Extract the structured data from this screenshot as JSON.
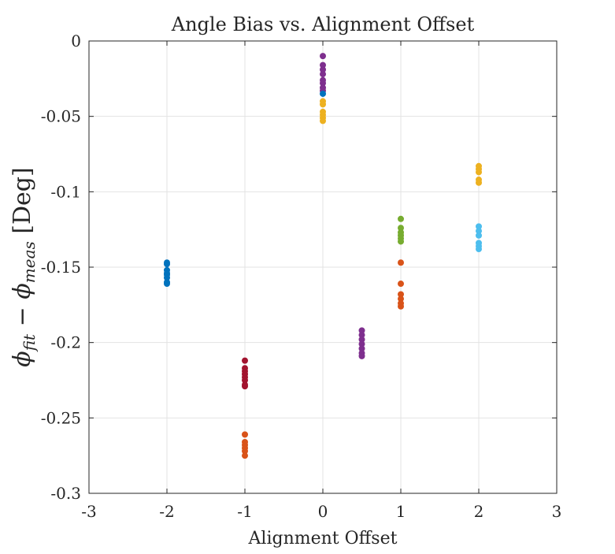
{
  "chart_data": {
    "type": "scatter",
    "title": "Angle Bias vs. Alignment Offset",
    "xlabel": "Alignment Offset",
    "ylabel": {
      "prefix": "ϕ",
      "sub1": "fit",
      "minus": " − ϕ",
      "sub2": "meas",
      "units": " [Deg]"
    },
    "xlim": [
      -3,
      3
    ],
    "ylim": [
      -0.3,
      0
    ],
    "xticks": [
      -3,
      -2,
      -1,
      0,
      1,
      2,
      3
    ],
    "xtick_labels": [
      "-3",
      "-2",
      "-1",
      "0",
      "1",
      "2",
      "3"
    ],
    "yticks": [
      0,
      -0.05,
      -0.1,
      -0.15,
      -0.2,
      -0.25,
      -0.3
    ],
    "ytick_labels": [
      "0",
      "-0.05",
      "-0.1",
      "-0.15",
      "-0.2",
      "-0.25",
      "-0.3"
    ],
    "grid": true,
    "box": true,
    "series": [
      {
        "color": "#0072BD",
        "x": -2,
        "y": [
          -0.147,
          -0.148,
          -0.152,
          -0.154,
          -0.155,
          -0.157,
          -0.16,
          -0.161
        ]
      },
      {
        "color": "#A2142F",
        "x": -1,
        "y": [
          -0.212,
          -0.217,
          -0.219,
          -0.221,
          -0.223,
          -0.225,
          -0.228,
          -0.229
        ]
      },
      {
        "color": "#D95319",
        "x": -1,
        "y": [
          -0.261,
          -0.266,
          -0.268,
          -0.27,
          -0.272,
          -0.275
        ]
      },
      {
        "color": "#7E2F8E",
        "x": 0,
        "y": [
          -0.01,
          -0.016,
          -0.019,
          -0.022,
          -0.026,
          -0.028,
          -0.031,
          -0.033
        ]
      },
      {
        "color": "#0072BD",
        "x": 0,
        "y": [
          -0.035
        ]
      },
      {
        "color": "#EDB120",
        "x": 0,
        "y": [
          -0.04,
          -0.042,
          -0.047,
          -0.049,
          -0.051,
          -0.053
        ]
      },
      {
        "color": "#7E2F8E",
        "x": 0.5,
        "y": [
          -0.192,
          -0.195,
          -0.198,
          -0.201,
          -0.204,
          -0.207,
          -0.209
        ]
      },
      {
        "color": "#77AC30",
        "x": 1,
        "y": [
          -0.118,
          -0.124,
          -0.127,
          -0.129,
          -0.131,
          -0.133
        ]
      },
      {
        "color": "#D95319",
        "x": 1,
        "y": [
          -0.147,
          -0.161,
          -0.168,
          -0.171,
          -0.174,
          -0.176
        ]
      },
      {
        "color": "#EDB120",
        "x": 2,
        "y": [
          -0.083,
          -0.085,
          -0.087,
          -0.092,
          -0.094
        ]
      },
      {
        "color": "#4DBEEE",
        "x": 2,
        "y": [
          -0.123,
          -0.126,
          -0.129,
          -0.134,
          -0.136,
          -0.138
        ]
      }
    ]
  }
}
